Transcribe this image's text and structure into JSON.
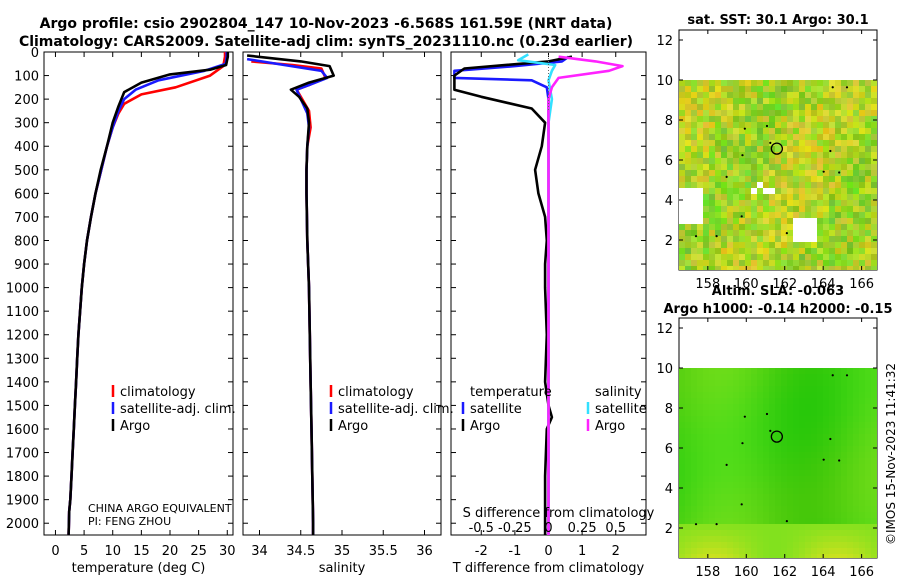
{
  "title": {
    "line1": "Argo profile: csio 2902804_147 10-Nov-2023 -6.568S 161.59E (NRT data)",
    "line2": "Climatology: CARS2009. Satellite-adj clim: synTS_20231110.nc (0.23d earlier)"
  },
  "colors": {
    "climatology": "#ff0000",
    "satellite": "#1a1aff",
    "argo": "#000000",
    "sat_salinity": "#33e0ff",
    "argo_salinity": "#ff22ff"
  },
  "chart_data": [
    {
      "id": "temperature",
      "type": "line",
      "xlabel": "temperature (deg C)",
      "xlim": [
        -2,
        31
      ],
      "ylim": [
        0,
        2050
      ],
      "xticks": [
        0,
        5,
        10,
        15,
        20,
        25,
        30
      ],
      "yticks": [
        0,
        100,
        200,
        300,
        400,
        500,
        600,
        700,
        800,
        900,
        1000,
        1100,
        1200,
        1300,
        1400,
        1500,
        1600,
        1700,
        1800,
        1900,
        2000
      ],
      "legend": [
        "climatology",
        "satellite-adj. clim.",
        "Argo"
      ],
      "annotations": [
        "CHINA ARGO EQUIVALENT",
        "PI: FENG ZHOU"
      ],
      "series": [
        {
          "name": "climatology",
          "color": "#ff0000",
          "points": [
            [
              29.6,
              0
            ],
            [
              29.6,
              20
            ],
            [
              29.3,
              60
            ],
            [
              27,
              100
            ],
            [
              21,
              150
            ],
            [
              15,
              180
            ],
            [
              12,
              220
            ],
            [
              11,
              260
            ],
            [
              10,
              320
            ],
            [
              9,
              400
            ],
            [
              8,
              500
            ],
            [
              7,
              600
            ],
            [
              6.2,
              700
            ],
            [
              5.5,
              800
            ],
            [
              5,
              900
            ],
            [
              4.6,
              1000
            ],
            [
              4.3,
              1100
            ],
            [
              4,
              1200
            ],
            [
              3.8,
              1300
            ],
            [
              3.6,
              1400
            ],
            [
              3.4,
              1500
            ],
            [
              3.2,
              1600
            ],
            [
              3,
              1700
            ],
            [
              2.8,
              1800
            ],
            [
              2.6,
              1900
            ],
            [
              2.4,
              1950
            ],
            [
              2.3,
              2050
            ]
          ]
        },
        {
          "name": "satellite-adj. clim.",
          "color": "#1a1aff",
          "points": [
            [
              29.9,
              0
            ],
            [
              29.9,
              20
            ],
            [
              29.7,
              50
            ],
            [
              26,
              80
            ],
            [
              18,
              120
            ],
            [
              14,
              160
            ],
            [
              12,
              200
            ],
            [
              11,
              250
            ],
            [
              10,
              320
            ],
            [
              9,
              400
            ],
            [
              8,
              500
            ],
            [
              7,
              600
            ],
            [
              6.2,
              700
            ],
            [
              5.5,
              800
            ],
            [
              5,
              900
            ],
            [
              4.6,
              1000
            ],
            [
              4.3,
              1100
            ],
            [
              4,
              1200
            ],
            [
              3.8,
              1300
            ],
            [
              3.6,
              1400
            ],
            [
              3.4,
              1500
            ],
            [
              3.2,
              1600
            ],
            [
              3,
              1700
            ],
            [
              2.8,
              1800
            ],
            [
              2.6,
              1900
            ],
            [
              2.4,
              1950
            ],
            [
              2.3,
              2050
            ]
          ]
        },
        {
          "name": "Argo",
          "color": "#000000",
          "points": [
            [
              30.1,
              0
            ],
            [
              30.1,
              20
            ],
            [
              29.8,
              55
            ],
            [
              27,
              75
            ],
            [
              20,
              95
            ],
            [
              15,
              130
            ],
            [
              12,
              170
            ],
            [
              11,
              230
            ],
            [
              10,
              300
            ],
            [
              9,
              400
            ],
            [
              7.9,
              500
            ],
            [
              7,
              600
            ],
            [
              6.2,
              700
            ],
            [
              5.5,
              800
            ],
            [
              5,
              900
            ],
            [
              4.6,
              1000
            ],
            [
              4.3,
              1100
            ],
            [
              4,
              1200
            ],
            [
              3.8,
              1300
            ],
            [
              3.6,
              1400
            ],
            [
              3.4,
              1500
            ],
            [
              3.2,
              1600
            ],
            [
              3,
              1700
            ],
            [
              2.8,
              1800
            ],
            [
              2.6,
              1900
            ],
            [
              2.4,
              1950
            ],
            [
              2.3,
              2050
            ]
          ]
        }
      ]
    },
    {
      "id": "salinity",
      "type": "line",
      "xlabel": "salinity",
      "xlim": [
        33.8,
        36.2
      ],
      "ylim": [
        0,
        2050
      ],
      "xticks": [
        34,
        34.5,
        35,
        35.5,
        36
      ],
      "legend": [
        "climatology",
        "satellite-adj. clim.",
        "Argo"
      ],
      "series": [
        {
          "name": "climatology",
          "color": "#ff0000",
          "points": [
            [
              33.9,
              40
            ],
            [
              34.4,
              55
            ],
            [
              34.75,
              70
            ],
            [
              34.8,
              110
            ],
            [
              34.6,
              140
            ],
            [
              34.45,
              160
            ],
            [
              34.5,
              190
            ],
            [
              34.6,
              250
            ],
            [
              34.62,
              320
            ],
            [
              34.58,
              400
            ],
            [
              34.57,
              500
            ],
            [
              34.57,
              600
            ],
            [
              34.58,
              800
            ],
            [
              34.6,
              1000
            ],
            [
              34.61,
              1200
            ],
            [
              34.62,
              1400
            ],
            [
              34.63,
              1600
            ],
            [
              34.64,
              1800
            ],
            [
              34.65,
              2000
            ],
            [
              34.65,
              2050
            ]
          ]
        },
        {
          "name": "satellite-adj. clim.",
          "color": "#1a1aff",
          "points": [
            [
              33.85,
              30
            ],
            [
              34.3,
              55
            ],
            [
              34.75,
              80
            ],
            [
              34.82,
              110
            ],
            [
              34.6,
              140
            ],
            [
              34.45,
              160
            ],
            [
              34.5,
              200
            ],
            [
              34.58,
              260
            ],
            [
              34.6,
              320
            ],
            [
              34.58,
              400
            ],
            [
              34.57,
              500
            ],
            [
              34.57,
              600
            ],
            [
              34.58,
              800
            ],
            [
              34.6,
              1000
            ],
            [
              34.61,
              1200
            ],
            [
              34.62,
              1400
            ],
            [
              34.63,
              1600
            ],
            [
              34.64,
              1800
            ],
            [
              34.65,
              2000
            ],
            [
              34.65,
              2050
            ]
          ]
        },
        {
          "name": "Argo",
          "color": "#000000",
          "points": [
            [
              33.85,
              15
            ],
            [
              34.5,
              40
            ],
            [
              34.85,
              60
            ],
            [
              34.9,
              100
            ],
            [
              34.6,
              130
            ],
            [
              34.38,
              160
            ],
            [
              34.48,
              190
            ],
            [
              34.58,
              240
            ],
            [
              34.6,
              300
            ],
            [
              34.58,
              400
            ],
            [
              34.57,
              500
            ],
            [
              34.57,
              600
            ],
            [
              34.58,
              800
            ],
            [
              34.6,
              1000
            ],
            [
              34.61,
              1200
            ],
            [
              34.62,
              1400
            ],
            [
              34.63,
              1600
            ],
            [
              34.64,
              1800
            ],
            [
              34.65,
              2000
            ],
            [
              34.65,
              2050
            ]
          ]
        }
      ]
    },
    {
      "id": "difference",
      "type": "line",
      "xlabel": "T difference from climatology",
      "xlabel2": "S difference from climatology",
      "xlim": [
        -2.9,
        2.9
      ],
      "ylim": [
        0,
        2050
      ],
      "xticks": [
        -2,
        -1,
        0,
        1,
        2
      ],
      "sticks": [
        {
          "label": "-0.5",
          "value": -2
        },
        {
          "label": "-0.25",
          "value": -1
        },
        {
          "label": "0",
          "value": 0
        },
        {
          "label": "0.25",
          "value": 1
        },
        {
          "label": "0.5",
          "value": 2
        }
      ],
      "legend_titles": [
        "temperature",
        "salinity"
      ],
      "legend_t": [
        "satellite",
        "Argo"
      ],
      "legend_s": [
        "satellite",
        "Argo"
      ],
      "series": [
        {
          "name": "T satellite",
          "color": "#1a1aff",
          "points": [
            [
              0.6,
              20
            ],
            [
              0.4,
              40
            ],
            [
              -1,
              60
            ],
            [
              -2.8,
              80
            ],
            [
              -2.8,
              110
            ],
            [
              -0.5,
              120
            ],
            [
              -0.05,
              150
            ],
            [
              0,
              200
            ],
            [
              0,
              2050
            ]
          ]
        },
        {
          "name": "T Argo",
          "color": "#000000",
          "points": [
            [
              0.7,
              20
            ],
            [
              0,
              40
            ],
            [
              -2.5,
              70
            ],
            [
              -2.8,
              100
            ],
            [
              -2.8,
              130
            ],
            [
              -2.8,
              160
            ],
            [
              -2,
              190
            ],
            [
              -0.5,
              240
            ],
            [
              -0.1,
              300
            ],
            [
              -0.2,
              400
            ],
            [
              -0.4,
              500
            ],
            [
              -0.3,
              600
            ],
            [
              -0.1,
              700
            ],
            [
              -0.05,
              800
            ],
            [
              -0.1,
              900
            ],
            [
              -0.1,
              1000
            ],
            [
              -0.05,
              1200
            ],
            [
              -0.1,
              1400
            ],
            [
              0,
              1500
            ],
            [
              0.1,
              1550
            ],
            [
              -0.05,
              1600
            ],
            [
              -0.1,
              1800
            ],
            [
              -0.1,
              1900
            ],
            [
              -0.1,
              2000
            ],
            [
              -0.1,
              2050
            ]
          ]
        },
        {
          "name": "S satellite",
          "color": "#33e0ff",
          "points": [
            [
              -0.6,
              10
            ],
            [
              -0.9,
              35
            ],
            [
              0.2,
              55
            ],
            [
              0.1,
              80
            ],
            [
              0,
              120
            ],
            [
              0.1,
              200
            ],
            [
              0,
              300
            ],
            [
              0,
              2050
            ]
          ]
        },
        {
          "name": "S Argo",
          "color": "#ff22ff",
          "points": [
            [
              0.3,
              20
            ],
            [
              1.4,
              40
            ],
            [
              2.2,
              60
            ],
            [
              1.8,
              80
            ],
            [
              0.3,
              110
            ],
            [
              0.1,
              150
            ],
            [
              0,
              200
            ],
            [
              0,
              2050
            ]
          ]
        }
      ]
    },
    {
      "id": "sst_map",
      "type": "heatmap",
      "title": "sat. SST: 30.1 Argo: 30.1",
      "xlim": [
        156.5,
        166.8
      ],
      "ylim": [
        0.5,
        12.5
      ],
      "xticks": [
        158,
        160,
        162,
        164,
        166
      ],
      "yticks": [
        2,
        4,
        6,
        8,
        10,
        12
      ],
      "data_ymax": 10,
      "marker": {
        "lon": 161.59,
        "lat": 6.57
      }
    },
    {
      "id": "sla_map",
      "type": "heatmap",
      "title": "Altim. SLA: -0.063",
      "subtitle": "Argo h1000: -0.14 h2000: -0.15",
      "xlim": [
        156.5,
        166.8
      ],
      "ylim": [
        0.5,
        12.5
      ],
      "xticks": [
        158,
        160,
        162,
        164,
        166
      ],
      "yticks": [
        2,
        4,
        6,
        8,
        10,
        12
      ],
      "data_ymax": 10,
      "marker": {
        "lon": 161.59,
        "lat": 6.57
      }
    }
  ],
  "footer": {
    "stamp": "©IMOS 15-Nov-2023 11:41:32"
  }
}
